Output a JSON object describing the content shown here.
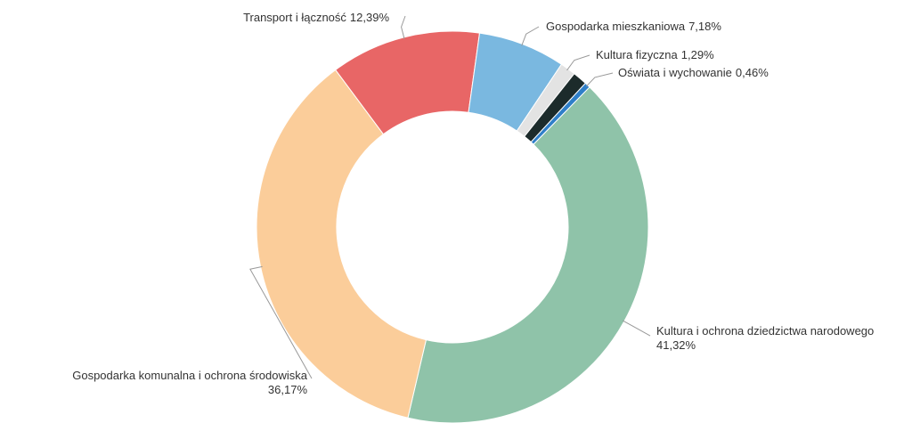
{
  "chart_data": {
    "type": "donut",
    "categories": [
      "Kultura i ochrona dziedzictwa narodowego",
      "Gospodarka komunalna i ochrona środowiska",
      "Transport i łączność",
      "Gospodarka mieszkaniowa",
      "Kultura fizyczna",
      null,
      "Oświata i wychowanie"
    ],
    "values": [
      41.32,
      36.17,
      12.39,
      7.18,
      1.29,
      1.19,
      0.46
    ],
    "value_labels": [
      "41,32%",
      "36,17%",
      "12,39%",
      "7,18%",
      "1,29%",
      null,
      "0,46%"
    ],
    "colors": [
      "#8fc3a9",
      "#fbcd9a",
      "#e86666",
      "#7ab8e0",
      "#e3e3e3",
      "#1c2b2b",
      "#2f7fc8"
    ]
  }
}
